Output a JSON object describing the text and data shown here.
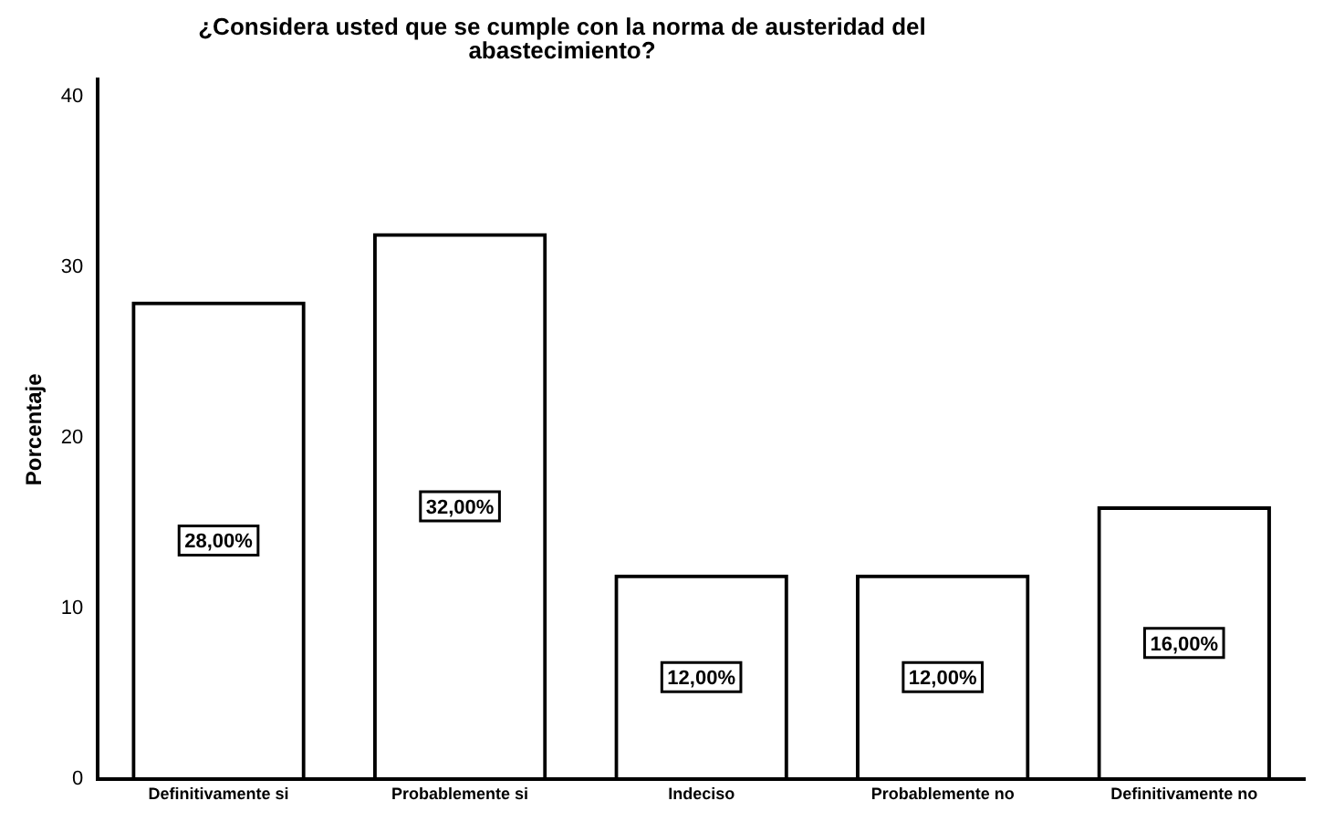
{
  "chart_data": {
    "type": "bar",
    "title": "¿Considera usted que se cumple con la norma de austeridad del abastecimiento?",
    "ylabel": "Porcentaje",
    "categories": [
      "Definitivamente si",
      "Probablemente si",
      "Indeciso",
      "Probablemente no",
      "Definitivamente no"
    ],
    "values": [
      28,
      32,
      12,
      12,
      16
    ],
    "color": "#000000",
    "value_labels": [
      "28,00%",
      "32,00%",
      "12,00%",
      "12,00%",
      "16,00%"
    ],
    "ylim": [
      0,
      41
    ],
    "yticks": [
      0,
      10,
      20,
      30,
      40
    ],
    "grid": false,
    "legend": false
  }
}
